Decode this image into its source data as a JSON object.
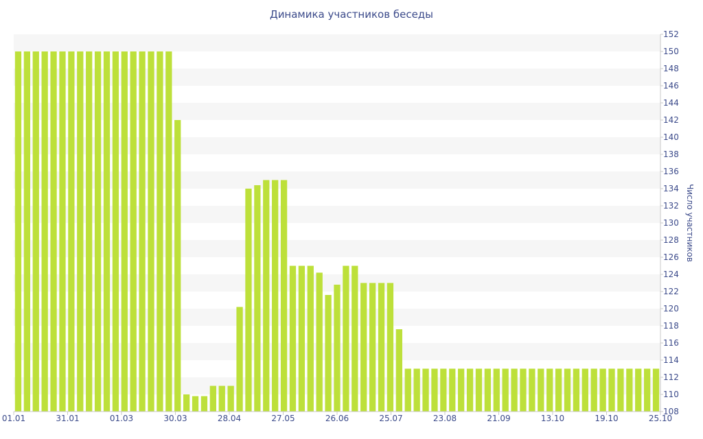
{
  "chart_data": {
    "type": "bar",
    "title": "Динамика участников беседы",
    "ylabel": "Число участников",
    "xlabel": "",
    "ylim": [
      108,
      152
    ],
    "y_ticks": [
      108,
      110,
      112,
      114,
      116,
      118,
      120,
      122,
      124,
      126,
      128,
      130,
      132,
      134,
      136,
      138,
      140,
      142,
      144,
      146,
      148,
      150,
      152
    ],
    "y_axis_side": "right",
    "grid": "horizontal alternating bands",
    "x_tick_labels": [
      "01.01",
      "31.01",
      "01.03",
      "30.03",
      "28.04",
      "27.05",
      "26.06",
      "25.07",
      "23.08",
      "21.09",
      "13.10",
      "19.10",
      "25.10"
    ],
    "values": [
      150,
      150,
      150,
      150,
      150,
      150,
      150,
      150,
      150,
      150,
      150,
      150,
      150,
      150,
      150,
      150,
      150,
      150,
      142,
      110,
      109.8,
      109.8,
      111,
      111,
      111,
      120.2,
      134,
      134.4,
      135,
      135,
      135,
      125,
      125,
      125,
      124.2,
      121.6,
      122.8,
      125,
      125,
      123,
      123,
      123,
      123,
      117.6,
      113,
      113,
      113,
      113,
      113,
      113,
      113,
      113,
      113,
      113,
      113,
      113,
      113,
      113,
      113,
      113,
      113,
      113,
      113,
      113,
      113,
      113,
      113,
      113,
      113,
      113,
      113,
      113,
      113
    ],
    "colors": {
      "bar": "#bde03a",
      "band": "#f6f6f6",
      "text": "#3b4a8a"
    }
  }
}
